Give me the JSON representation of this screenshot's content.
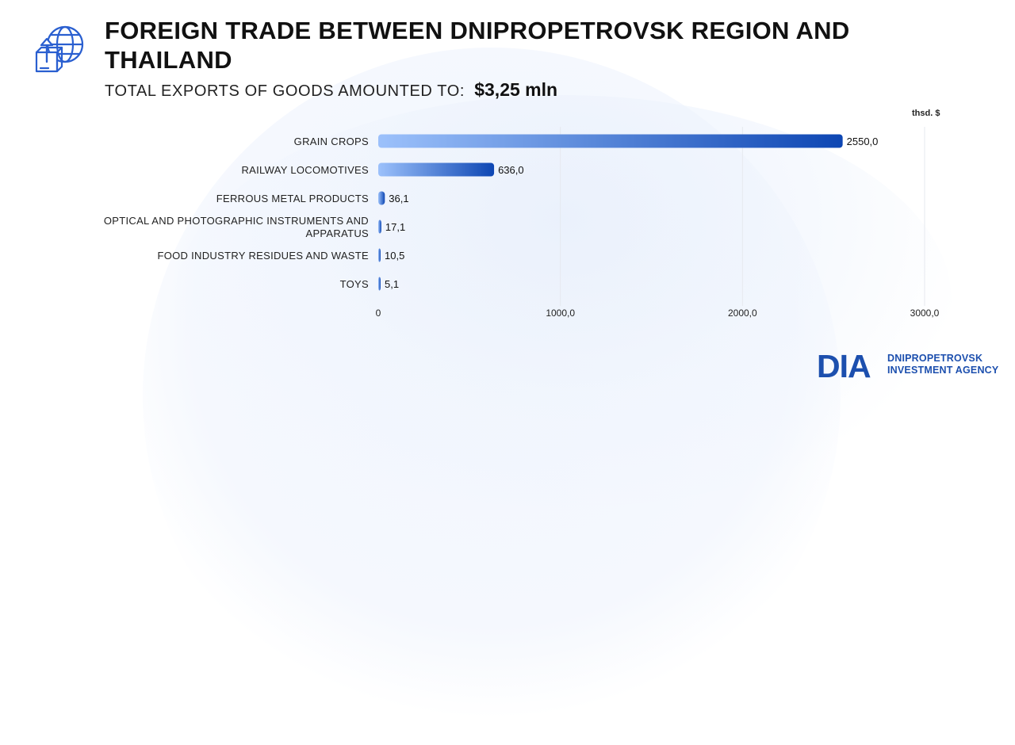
{
  "title": "FOREIGN TRADE BETWEEN DNIPROPETROVSK REGION AND THAILAND",
  "subtitle_label": "TOTAL EXPORTS OF GOODS AMOUNTED TO:",
  "subtitle_total": "$3,25 mln",
  "unit_label": "thsd. $",
  "brand": {
    "logo_text": "DIA",
    "line1": "DNIPROPETROVSK",
    "line2": "INVESTMENT AGENCY",
    "color": "#1c4fae"
  },
  "icons": {
    "header": "globe-export-icon"
  },
  "colors": {
    "bar_light": "#9cc1fb",
    "bar_dark": "#0d46b3",
    "grid": "#e6e9ef"
  },
  "chart_data": {
    "type": "bar",
    "orientation": "horizontal",
    "categories": [
      "GRAIN CROPS",
      "RAILWAY LOCOMOTIVES",
      "FERROUS METAL PRODUCTS",
      "OPTICAL AND PHOTOGRAPHIC INSTRUMENTS AND APPARATUS",
      "FOOD INDUSTRY RESIDUES AND WASTE",
      "TOYS"
    ],
    "category_lines": [
      [
        "GRAIN CROPS"
      ],
      [
        "RAILWAY LOCOMOTIVES"
      ],
      [
        "FERROUS METAL PRODUCTS"
      ],
      [
        "OPTICAL AND PHOTOGRAPHIC INSTRUMENTS AND",
        "APPARATUS"
      ],
      [
        "FOOD INDUSTRY RESIDUES AND WASTE"
      ],
      [
        "TOYS"
      ]
    ],
    "values": [
      2550.0,
      636.0,
      36.1,
      17.1,
      10.5,
      5.1
    ],
    "value_labels": [
      "2550,0",
      "636,0",
      "36,1",
      "17,1",
      "10,5",
      "5,1"
    ],
    "xlim": [
      0,
      3000
    ],
    "ticks": [
      0,
      1000,
      2000,
      3000
    ],
    "tick_labels": [
      "0",
      "1000,0",
      "2000,0",
      "3000,0"
    ],
    "grid": true
  }
}
